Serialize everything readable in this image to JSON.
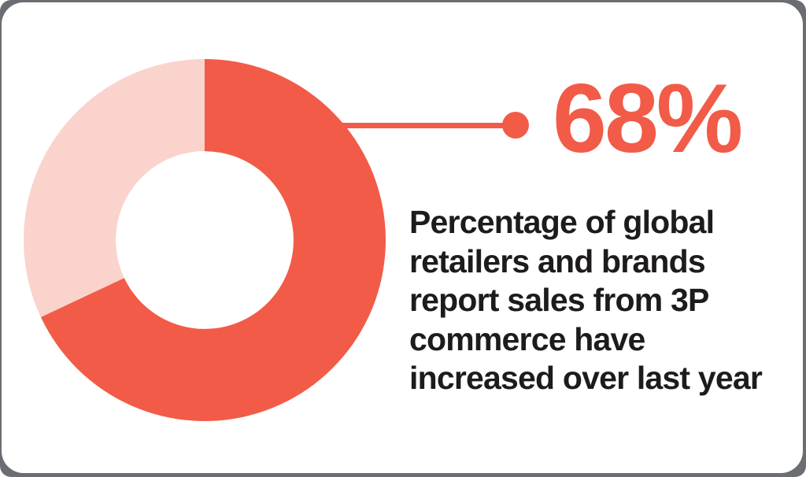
{
  "frame": {
    "frame_color": "#6a6d72",
    "card_color": "#ffffff"
  },
  "chart_data": {
    "type": "pie",
    "subtype": "donut",
    "title": "Percentage of global retailers and brands report sales from 3P commerce have increased over last year",
    "slices": [
      {
        "label": "68%",
        "value": 68,
        "color": "#f25b47"
      },
      {
        "label": "",
        "value": 32,
        "color": "#fad3cc"
      }
    ],
    "start_angle_deg": 0,
    "direction": "clockwise",
    "inner_radius_ratio": 0.491,
    "legend": "none",
    "annotation": {
      "value_label": "68%",
      "connector": "line-with-dot"
    }
  },
  "callout": {
    "value_label": "68%",
    "accent_color": "#f25b47",
    "text_color": "#1e1b1c",
    "description": "Percentage of global retailers and brands report sales from 3P commerce have increased over last year",
    "description_lines": [
      "Percentage of global",
      "retailers and brands",
      "report sales from 3P",
      "commerce have",
      "increased over last year"
    ]
  }
}
